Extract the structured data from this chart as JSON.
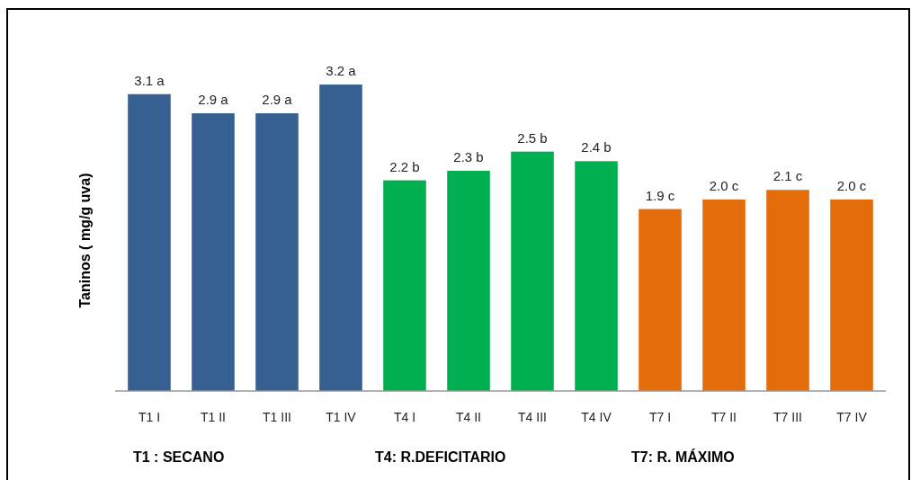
{
  "chart_data": {
    "type": "bar",
    "ylabel": "Taninos ( mg/g uva)",
    "categories": [
      "T1 I",
      "T1 II",
      "T1 III",
      "T1 IV",
      "T4 I",
      "T4 II",
      "T4 III",
      "T4 IV",
      "T7 I",
      "T7 II",
      "T7 III",
      "T7 IV"
    ],
    "values": [
      3.1,
      2.9,
      2.9,
      3.2,
      2.2,
      2.3,
      2.5,
      2.4,
      1.9,
      2.0,
      2.1,
      2.0
    ],
    "colors": [
      "#376092",
      "#376092",
      "#376092",
      "#376092",
      "#00b050",
      "#00b050",
      "#00b050",
      "#00b050",
      "#e46c0a",
      "#e46c0a",
      "#e46c0a",
      "#e46c0a"
    ],
    "value_labels": [
      "3.1 a",
      "2.9 a",
      "2.9 a",
      "3.2 a",
      "2.2 b",
      "2.3 b",
      "2.5 b",
      "2.4 b",
      "1.9 c",
      "2.0 c",
      "2.1 c",
      "2.0 c"
    ],
    "annotations": [
      "T1 : SECANO",
      "T4: R.DEFICITARIO",
      "T7: R. MÁXIMO"
    ]
  }
}
